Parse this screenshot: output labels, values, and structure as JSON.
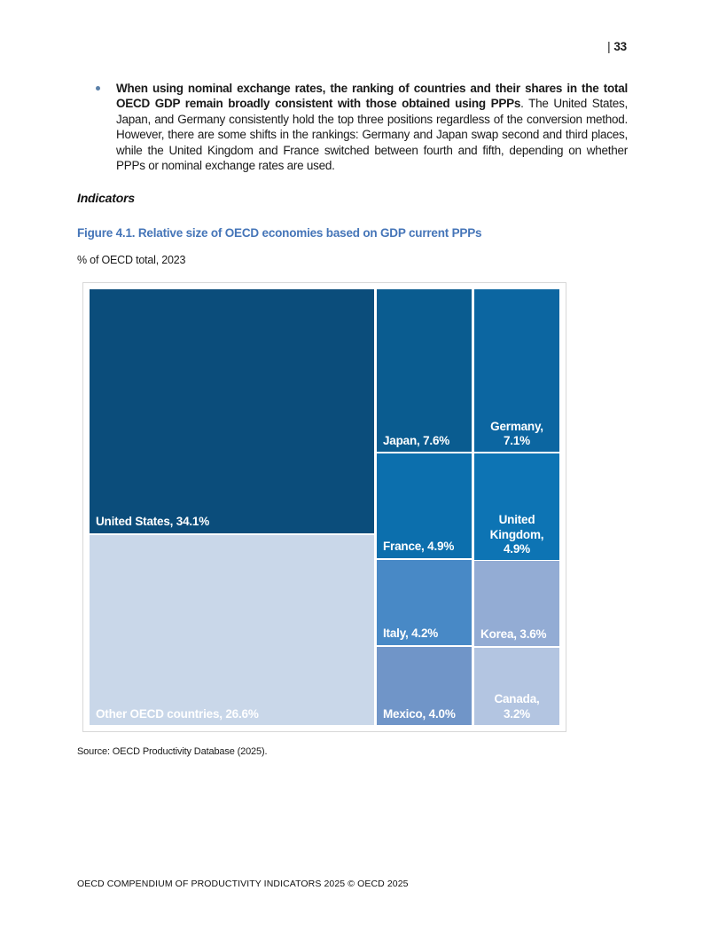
{
  "page": {
    "number_bar": "|",
    "number": "33",
    "footer": "OECD COMPENDIUM OF PRODUCTIVITY INDICATORS 2025 © OECD 2025"
  },
  "content": {
    "bullet_bold": "When using nominal exchange rates, the ranking of countries and their shares in the total OECD GDP remain broadly consistent with those obtained using PPPs",
    "bullet_regular": ". The United States, Japan, and Germany consistently hold the top three positions regardless of the conversion method. However, there are some shifts in the rankings: Germany and Japan swap second and third places, while the United Kingdom and France switched between fourth and fifth, depending on whether PPPs or nominal exchange rates are used.",
    "section_heading": "Indicators",
    "figure_title": "Figure 4.1. Relative size of OECD economies based on GDP current PPPs",
    "figure_subtitle": "% of OECD total, 2023",
    "source": "Source: OECD Productivity Database (2025)."
  },
  "colors": {
    "figure_title": "#4575b8",
    "bullet_dot": "#5b80a9",
    "chart_border": "#d8d8d8"
  },
  "chart_data": {
    "type": "treemap",
    "title": "Figure 4.1. Relative size of OECD economies based on GDP current PPPs",
    "subtitle": "% of OECD total, 2023",
    "unit": "% of OECD total",
    "year": "2023",
    "items": [
      {
        "name": "United States",
        "value": 34.1,
        "label_lines": [
          "United States, 34.1%"
        ],
        "color": "#0b4d7b",
        "text_align": "left",
        "rect": {
          "x": 0,
          "y": 0,
          "w": 60.57,
          "h": 55.96
        }
      },
      {
        "name": "Other OECD countries",
        "value": 26.6,
        "label_lines": [
          "Other OECD countries, 26.6%"
        ],
        "color": "#c9d7e9",
        "text_align": "left",
        "rect": {
          "x": 0,
          "y": 56.36,
          "w": 60.57,
          "h": 43.64
        }
      },
      {
        "name": "Japan",
        "value": 7.6,
        "label_lines": [
          "Japan, 7.6%"
        ],
        "color": "#0a5c90",
        "text_align": "left",
        "rect": {
          "x": 61.13,
          "y": 0,
          "w": 20.19,
          "h": 37.37
        }
      },
      {
        "name": "Germany",
        "value": 7.1,
        "label_lines": [
          "Germany,",
          "7.1%"
        ],
        "color": "#0c66a1",
        "text_align": "center",
        "rect": {
          "x": 81.89,
          "y": 0,
          "w": 18.11,
          "h": 37.37
        }
      },
      {
        "name": "France",
        "value": 4.9,
        "label_lines": [
          "France, 4.9%"
        ],
        "color": "#0c6fad",
        "text_align": "left",
        "rect": {
          "x": 61.13,
          "y": 37.78,
          "w": 20.19,
          "h": 23.84
        }
      },
      {
        "name": "United Kingdom",
        "value": 4.9,
        "label_lines": [
          "United",
          "Kingdom,",
          "4.9%"
        ],
        "color": "#0d74b4",
        "text_align": "center",
        "rect": {
          "x": 81.89,
          "y": 37.78,
          "w": 18.11,
          "h": 24.44
        }
      },
      {
        "name": "Italy",
        "value": 4.2,
        "label_lines": [
          "Italy, 4.2%"
        ],
        "color": "#4889c6",
        "text_align": "left",
        "rect": {
          "x": 61.13,
          "y": 62.02,
          "w": 20.19,
          "h": 19.6
        }
      },
      {
        "name": "Korea",
        "value": 3.6,
        "label_lines": [
          "Korea, 3.6%"
        ],
        "color": "#93acd4",
        "text_align": "left",
        "rect": {
          "x": 81.89,
          "y": 62.42,
          "w": 18.11,
          "h": 19.39
        }
      },
      {
        "name": "Mexico",
        "value": 4.0,
        "label_lines": [
          "Mexico, 4.0%"
        ],
        "color": "#7095c8",
        "text_align": "left",
        "rect": {
          "x": 61.13,
          "y": 82.02,
          "w": 20.19,
          "h": 17.98
        }
      },
      {
        "name": "Canada",
        "value": 3.2,
        "label_lines": [
          "Canada,",
          "3.2%"
        ],
        "color": "#b3c5e1",
        "text_align": "center",
        "rect": {
          "x": 81.89,
          "y": 82.22,
          "w": 18.11,
          "h": 17.78
        }
      }
    ]
  }
}
